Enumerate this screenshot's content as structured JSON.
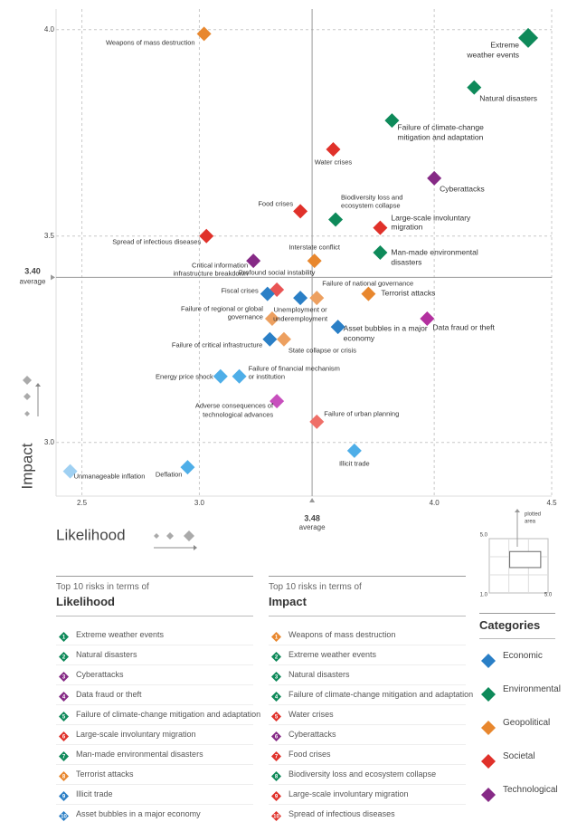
{
  "chart_data": {
    "type": "scatter",
    "xlabel": "Likelihood",
    "ylabel": "Impact",
    "xlim": [
      2.39,
      4.5
    ],
    "ylim": [
      2.87,
      4.05
    ],
    "xticks": [
      2.5,
      {
        "value": 3,
        "label": "3.0"
      },
      {
        "value": 4,
        "label": "4.0"
      },
      4.5
    ],
    "yticks": [
      {
        "value": 4,
        "label": "4.0"
      },
      3.5,
      {
        "value": 3,
        "label": "3.0"
      }
    ],
    "grid": true,
    "x_average": 3.48,
    "y_average": {
      "value": 3.4,
      "label": "3.40"
    },
    "average_label": "average",
    "points": [
      {
        "name": "Weapons of mass destruction",
        "x": 3.02,
        "y": 3.99,
        "color": "#e8872e"
      },
      {
        "name": "Extreme weather events",
        "x": 4.4,
        "y": 3.98,
        "color": "#0e8a5a"
      },
      {
        "name": "Natural disasters",
        "x": 4.17,
        "y": 3.86,
        "color": "#0e8a5a"
      },
      {
        "name": "Failure of climate-change mitigation and adaptation",
        "x": 3.82,
        "y": 3.78,
        "color": "#0e8a5a"
      },
      {
        "name": "Water crises",
        "x": 3.57,
        "y": 3.71,
        "color": "#e0312a"
      },
      {
        "name": "Cyberattacks",
        "x": 4.0,
        "y": 3.64,
        "color": "#862a86"
      },
      {
        "name": "Food crises",
        "x": 3.43,
        "y": 3.56,
        "color": "#e0312a"
      },
      {
        "name": "Biodiversity loss and ecosystem collapse",
        "x": 3.58,
        "y": 3.54,
        "color": "#0e8a5a"
      },
      {
        "name": "Large-scale involuntary migration",
        "x": 3.77,
        "y": 3.52,
        "color": "#e0312a"
      },
      {
        "name": "Spread of infectious diseases",
        "x": 3.03,
        "y": 3.5,
        "color": "#e0312a"
      },
      {
        "name": "Interstate conflict",
        "x": 3.49,
        "y": 3.44,
        "color": "#e8872e"
      },
      {
        "name": "Man-made environmental disasters",
        "x": 3.77,
        "y": 3.46,
        "color": "#0e8a5a"
      },
      {
        "name": "Critical information infrastructure breakdown",
        "x": 3.23,
        "y": 3.44,
        "color": "#862a86"
      },
      {
        "name": "Profound social instability",
        "x": 3.33,
        "y": 3.37,
        "color": "#e95454"
      },
      {
        "name": "Fiscal crises",
        "x": 3.29,
        "y": 3.36,
        "color": "#2a7fc6"
      },
      {
        "name": "Failure of national governance",
        "x": 3.5,
        "y": 3.35,
        "color": "#eda060"
      },
      {
        "name": "Terrorist attacks",
        "x": 3.72,
        "y": 3.36,
        "color": "#e8872e"
      },
      {
        "name": "Unemployment or underemployment",
        "x": 3.43,
        "y": 3.35,
        "color": "#2a7fc6"
      },
      {
        "name": "Failure of regional or global governance",
        "x": 3.31,
        "y": 3.3,
        "color": "#eda060"
      },
      {
        "name": "Asset bubbles in a major economy",
        "x": 3.59,
        "y": 3.28,
        "color": "#2a7fc6"
      },
      {
        "name": "Data fraud or theft",
        "x": 3.97,
        "y": 3.3,
        "color": "#b3309f"
      },
      {
        "name": "Failure of critical infrastructure",
        "x": 3.3,
        "y": 3.25,
        "color": "#2a7fc6"
      },
      {
        "name": "State collapse or crisis",
        "x": 3.36,
        "y": 3.25,
        "color": "#eda060"
      },
      {
        "name": "Energy price shock",
        "x": 3.09,
        "y": 3.16,
        "color": "#4eaee8"
      },
      {
        "name": "Failure of financial mechanism or institution",
        "x": 3.17,
        "y": 3.16,
        "color": "#4eaee8"
      },
      {
        "name": "Adverse consequences of technological advances",
        "x": 3.33,
        "y": 3.1,
        "color": "#c74fbd"
      },
      {
        "name": "Failure of urban planning",
        "x": 3.5,
        "y": 3.05,
        "color": "#ef6f68"
      },
      {
        "name": "Illicit trade",
        "x": 3.66,
        "y": 2.98,
        "color": "#4eaee8"
      },
      {
        "name": "Deflation",
        "x": 2.95,
        "y": 2.94,
        "color": "#4eaee8"
      },
      {
        "name": "Unmanageable inflation",
        "x": 2.45,
        "y": 2.93,
        "color": "#9fd0f2"
      }
    ],
    "inset": {
      "title": "plotted area",
      "lim": [
        {
          "value": 1,
          "label": "1.0"
        },
        {
          "value": 5,
          "label": "5.0"
        }
      ]
    }
  },
  "top10": [
    {
      "heading": "Top 10 risks in terms of",
      "title": "Likelihood",
      "items": [
        {
          "rank": 1,
          "name": "Extreme weather events",
          "color": "#0e8a5a"
        },
        {
          "rank": 2,
          "name": "Natural disasters",
          "color": "#0e8a5a"
        },
        {
          "rank": 3,
          "name": "Cyberattacks",
          "color": "#862a86"
        },
        {
          "rank": 4,
          "name": "Data fraud or theft",
          "color": "#862a86"
        },
        {
          "rank": 5,
          "name": "Failure of climate-change mitigation and adaptation",
          "color": "#0e8a5a"
        },
        {
          "rank": 6,
          "name": "Large-scale involuntary migration",
          "color": "#e0312a"
        },
        {
          "rank": 7,
          "name": "Man-made environmental disasters",
          "color": "#0e8a5a"
        },
        {
          "rank": 8,
          "name": "Terrorist attacks",
          "color": "#e8872e"
        },
        {
          "rank": 9,
          "name": "Illicit trade",
          "color": "#2a7fc6"
        },
        {
          "rank": 10,
          "name": "Asset bubbles in a major economy",
          "color": "#2a7fc6"
        }
      ]
    },
    {
      "heading": "Top 10 risks in terms of",
      "title": "Impact",
      "items": [
        {
          "rank": 1,
          "name": "Weapons of mass destruction",
          "color": "#e8872e"
        },
        {
          "rank": 2,
          "name": "Extreme weather events",
          "color": "#0e8a5a"
        },
        {
          "rank": 3,
          "name": "Natural disasters",
          "color": "#0e8a5a"
        },
        {
          "rank": 4,
          "name": "Failure of climate-change mitigation and adaptation",
          "color": "#0e8a5a"
        },
        {
          "rank": 5,
          "name": "Water crises",
          "color": "#e0312a"
        },
        {
          "rank": 6,
          "name": "Cyberattacks",
          "color": "#862a86"
        },
        {
          "rank": 7,
          "name": "Food crises",
          "color": "#e0312a"
        },
        {
          "rank": 8,
          "name": "Biodiversity loss and ecosystem collapse",
          "color": "#0e8a5a"
        },
        {
          "rank": 9,
          "name": "Large-scale involuntary migration",
          "color": "#e0312a"
        },
        {
          "rank": 10,
          "name": "Spread of infectious diseases",
          "color": "#e0312a"
        }
      ]
    }
  ],
  "legend": {
    "title": "Categories",
    "items": [
      {
        "name": "Economic",
        "color": "#2a7fc6"
      },
      {
        "name": "Environmental",
        "color": "#0e8a5a"
      },
      {
        "name": "Geopolitical",
        "color": "#e8872e"
      },
      {
        "name": "Societal",
        "color": "#e0312a"
      },
      {
        "name": "Technological",
        "color": "#862a86"
      }
    ]
  }
}
